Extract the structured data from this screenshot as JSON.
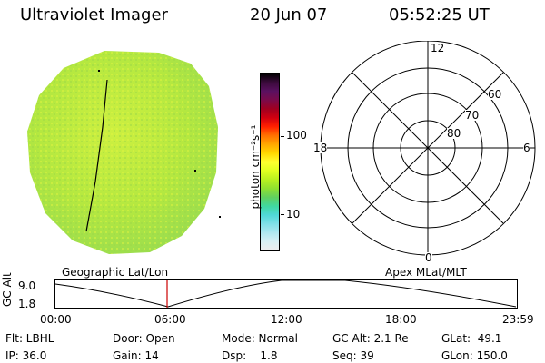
{
  "header": {
    "instrument": "Ultraviolet Imager",
    "date": "20 Jun 07",
    "time": "05:52:25 UT"
  },
  "colorbar": {
    "unit": "photon cm⁻²s⁻¹",
    "tick_high": "100",
    "tick_low": "10",
    "colors": [
      "#000000",
      "#3a0a3a",
      "#5a1060",
      "#7a0a4a",
      "#a00020",
      "#d00010",
      "#ff2000",
      "#ff7000",
      "#ffa800",
      "#ffd800",
      "#ffff30",
      "#e0ff20",
      "#b8f020",
      "#90e030",
      "#60d060",
      "#40d8a0",
      "#50d8d8",
      "#80e0e8",
      "#b0e8f0",
      "#d8f0f4",
      "#eeeeee"
    ]
  },
  "polar": {
    "label_top": "12",
    "label_left": "18",
    "label_right": "6",
    "label_bottom": "0",
    "lat_labels": [
      "60",
      "70",
      "80"
    ]
  },
  "orbit": {
    "left_title": "Geographic Lat/Lon",
    "right_title": "Apex MLat/MLT",
    "axis_label": "GC Alt",
    "y_top": "9.0",
    "y_bottom": "1.8",
    "times": [
      "00:00",
      "06:00",
      "12:00",
      "18:00",
      "23:59"
    ],
    "current_marker_color": "#cc0000"
  },
  "status": {
    "flt": "Flt: LBHL",
    "ip": "IP: 36.0",
    "door": "Door: Open",
    "gain": "Gain: 14",
    "mode": "Mode: Normal",
    "dsp": "Dsp:    1.8",
    "gc_alt": "GC Alt: 2.1 Re",
    "seq": "Seq: 39",
    "glat": "GLat:  49.1",
    "glon": "GLon: 150.0"
  }
}
